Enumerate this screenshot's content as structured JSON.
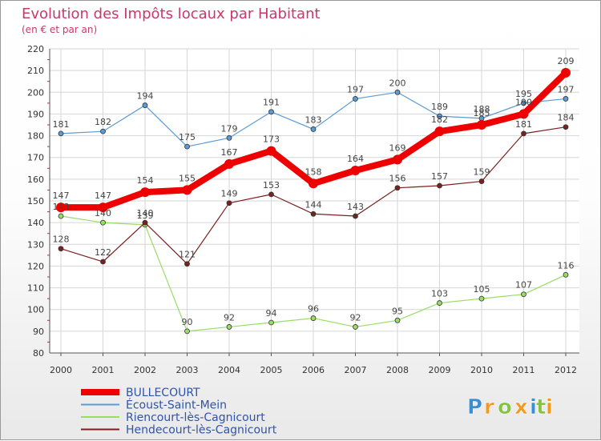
{
  "chart_data": {
    "type": "line",
    "title": "Evolution des Impôts locaux par Habitant",
    "subtitle": "(en € et par an)",
    "xlabel": "",
    "ylabel": "",
    "ylim": [
      80,
      220
    ],
    "ytick_step": 10,
    "grid": true,
    "legend_position": "bottom-left",
    "x": [
      "2000",
      "2001",
      "2002",
      "2003",
      "2004",
      "2005",
      "2006",
      "2007",
      "2008",
      "2009",
      "2010",
      "2011",
      "2012"
    ],
    "series": [
      {
        "name": "BULLECOURT",
        "color": "#ee0000",
        "line_style": "thick",
        "values": [
          147,
          147,
          154,
          155,
          167,
          173,
          158,
          164,
          169,
          182,
          185,
          190,
          209
        ]
      },
      {
        "name": "Écoust-Saint-Mein",
        "color": "#5b9bd5",
        "line_style": "thin",
        "values": [
          181,
          182,
          194,
          175,
          179,
          191,
          183,
          197,
          200,
          189,
          188,
          195,
          197
        ]
      },
      {
        "name": "Riencourt-lès-Cagnicourt",
        "color": "#99dd66",
        "line_style": "thin",
        "values": [
          143,
          140,
          139,
          90,
          92,
          94,
          96,
          92,
          95,
          103,
          105,
          107,
          116
        ]
      },
      {
        "name": "Hendecourt-lès-Cagnicourt",
        "color": "#7a2020",
        "line_style": "thin",
        "values": [
          128,
          122,
          140,
          121,
          149,
          153,
          144,
          143,
          156,
          157,
          159,
          181,
          184
        ]
      }
    ]
  },
  "brand": {
    "letters": [
      "P",
      "r",
      "o",
      "x",
      "i",
      "t",
      "i"
    ],
    "colors": [
      "#3a8fd4",
      "#f39a1e",
      "#86c440",
      "#f39a1e",
      "#3a8fd4",
      "#86c440",
      "#f39a1e"
    ]
  }
}
